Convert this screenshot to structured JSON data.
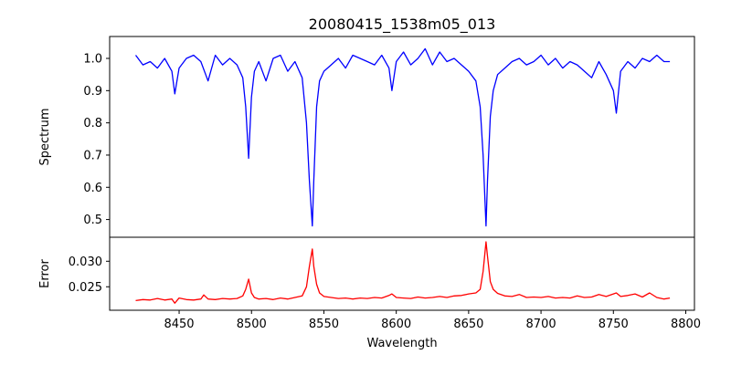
{
  "chart_data": [
    {
      "type": "line",
      "panel": "spectrum",
      "title": "20080415_1538m05_013",
      "xlabel": "",
      "ylabel": "Spectrum",
      "xlim": [
        8402,
        8806
      ],
      "ylim": [
        0.445,
        1.068
      ],
      "yticks": [
        0.5,
        0.6,
        0.7,
        0.8,
        0.9,
        1.0
      ],
      "ytick_labels": [
        "0.5",
        "0.6",
        "0.7",
        "0.8",
        "0.9",
        "1.0"
      ],
      "color": "#0000ff",
      "x": [
        8420,
        8425,
        8430,
        8435,
        8440,
        8445,
        8447,
        8450,
        8455,
        8460,
        8465,
        8470,
        8475,
        8480,
        8485,
        8490,
        8494,
        8496,
        8498,
        8500,
        8502,
        8505,
        8510,
        8515,
        8520,
        8525,
        8530,
        8535,
        8538,
        8540,
        8542,
        8543,
        8545,
        8547,
        8550,
        8555,
        8560,
        8565,
        8570,
        8575,
        8580,
        8585,
        8590,
        8595,
        8597,
        8600,
        8605,
        8610,
        8615,
        8620,
        8625,
        8630,
        8635,
        8640,
        8645,
        8650,
        8655,
        8658,
        8660,
        8662,
        8663,
        8665,
        8667,
        8670,
        8675,
        8680,
        8685,
        8690,
        8695,
        8700,
        8705,
        8710,
        8715,
        8720,
        8725,
        8730,
        8735,
        8740,
        8745,
        8750,
        8752,
        8755,
        8760,
        8765,
        8770,
        8775,
        8780,
        8785,
        8789
      ],
      "values": [
        1.01,
        0.98,
        0.99,
        0.97,
        1.0,
        0.96,
        0.89,
        0.97,
        1.0,
        1.01,
        0.99,
        0.93,
        1.01,
        0.98,
        1.0,
        0.98,
        0.94,
        0.85,
        0.69,
        0.88,
        0.96,
        0.99,
        0.93,
        1.0,
        1.01,
        0.96,
        0.99,
        0.94,
        0.8,
        0.62,
        0.48,
        0.62,
        0.85,
        0.93,
        0.96,
        0.98,
        1.0,
        0.97,
        1.01,
        1.0,
        0.99,
        0.98,
        1.01,
        0.97,
        0.9,
        0.99,
        1.02,
        0.98,
        1.0,
        1.03,
        0.98,
        1.02,
        0.99,
        1.0,
        0.98,
        0.96,
        0.93,
        0.85,
        0.7,
        0.48,
        0.62,
        0.82,
        0.9,
        0.95,
        0.97,
        0.99,
        1.0,
        0.98,
        0.99,
        1.01,
        0.98,
        1.0,
        0.97,
        0.99,
        0.98,
        0.96,
        0.94,
        0.99,
        0.95,
        0.9,
        0.83,
        0.96,
        0.99,
        0.97,
        1.0,
        0.99,
        1.01,
        0.99,
        0.99
      ]
    },
    {
      "type": "line",
      "panel": "error",
      "title": "",
      "xlabel": "Wavelength",
      "ylabel": "Error",
      "xlim": [
        8402,
        8806
      ],
      "ylim": [
        0.0204,
        0.0347
      ],
      "xticks": [
        8450,
        8500,
        8550,
        8600,
        8650,
        8700,
        8750,
        8800
      ],
      "xtick_labels": [
        "8450",
        "8500",
        "8550",
        "8600",
        "8650",
        "8700",
        "8750",
        "8800"
      ],
      "yticks": [
        0.025,
        0.03
      ],
      "ytick_labels": [
        "0.025",
        "0.030"
      ],
      "color": "#ff0000",
      "x": [
        8420,
        8425,
        8430,
        8435,
        8440,
        8445,
        8447,
        8450,
        8455,
        8460,
        8465,
        8467,
        8470,
        8475,
        8480,
        8485,
        8490,
        8494,
        8496,
        8498,
        8500,
        8502,
        8505,
        8510,
        8515,
        8520,
        8525,
        8530,
        8535,
        8538,
        8540,
        8542,
        8543,
        8545,
        8547,
        8550,
        8555,
        8560,
        8565,
        8570,
        8575,
        8580,
        8585,
        8590,
        8595,
        8597,
        8600,
        8605,
        8610,
        8615,
        8620,
        8625,
        8630,
        8635,
        8640,
        8645,
        8650,
        8655,
        8658,
        8660,
        8662,
        8663,
        8665,
        8667,
        8670,
        8675,
        8680,
        8685,
        8690,
        8695,
        8700,
        8705,
        8710,
        8715,
        8720,
        8725,
        8730,
        8735,
        8740,
        8745,
        8750,
        8752,
        8755,
        8760,
        8765,
        8770,
        8775,
        8780,
        8785,
        8789
      ],
      "values": [
        0.0223,
        0.0225,
        0.0224,
        0.0227,
        0.0224,
        0.0226,
        0.0218,
        0.0228,
        0.0225,
        0.0224,
        0.0226,
        0.0234,
        0.0226,
        0.0225,
        0.0227,
        0.0226,
        0.0227,
        0.0232,
        0.0245,
        0.0265,
        0.0238,
        0.0229,
        0.0226,
        0.0227,
        0.0225,
        0.0228,
        0.0226,
        0.0229,
        0.0232,
        0.025,
        0.029,
        0.0324,
        0.029,
        0.0255,
        0.0238,
        0.0231,
        0.0229,
        0.0227,
        0.0228,
        0.0226,
        0.0228,
        0.0227,
        0.0229,
        0.0228,
        0.0233,
        0.0236,
        0.0229,
        0.0228,
        0.0227,
        0.023,
        0.0228,
        0.0229,
        0.0231,
        0.0229,
        0.0232,
        0.0233,
        0.0236,
        0.0238,
        0.0245,
        0.028,
        0.0338,
        0.031,
        0.026,
        0.0245,
        0.0237,
        0.0232,
        0.0231,
        0.0235,
        0.0229,
        0.023,
        0.0229,
        0.0231,
        0.0228,
        0.0229,
        0.0228,
        0.0232,
        0.0229,
        0.023,
        0.0235,
        0.0231,
        0.0236,
        0.0238,
        0.0231,
        0.0233,
        0.0236,
        0.023,
        0.0238,
        0.0229,
        0.0226,
        0.0228
      ]
    }
  ]
}
